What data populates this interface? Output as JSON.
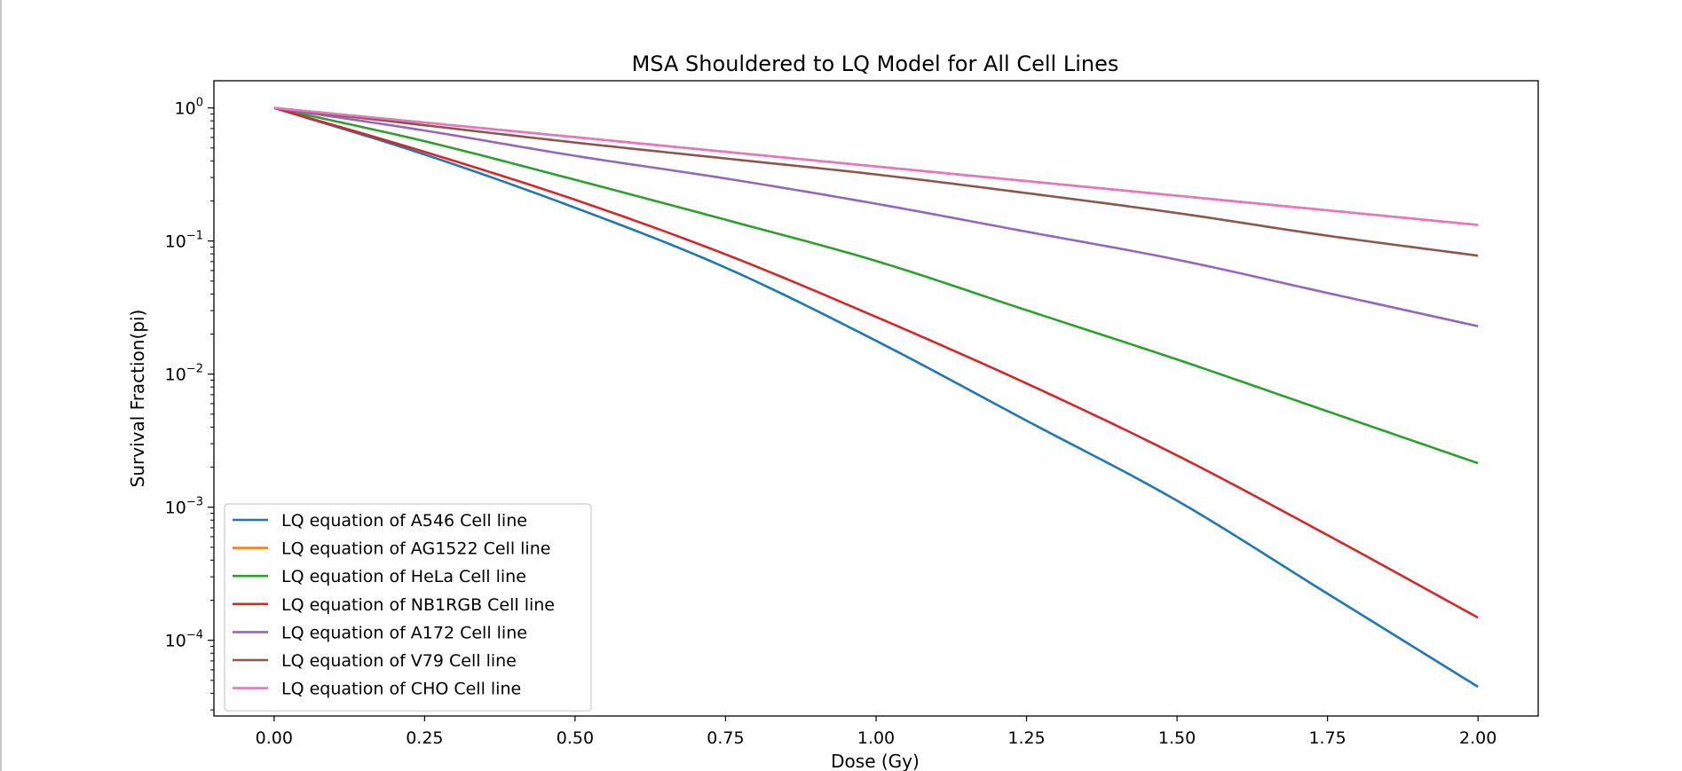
{
  "chart_data": {
    "type": "line",
    "title": "MSA Shouldered to LQ Model for All Cell Lines",
    "xlabel": "Dose (Gy)",
    "ylabel": "Survival Fraction(pi)",
    "xlim": [
      -0.1,
      2.1
    ],
    "ylim": [
      2.7e-05,
      1.6
    ],
    "yscale": "log",
    "grid": false,
    "legend_position": "lower-left",
    "x_ticks": [
      "0.00",
      "0.25",
      "0.50",
      "0.75",
      "1.00",
      "1.25",
      "1.50",
      "1.75",
      "2.00"
    ],
    "x_tick_values": [
      0,
      0.25,
      0.5,
      0.75,
      1.0,
      1.25,
      1.5,
      1.75,
      2.0
    ],
    "y_ticks": [
      {
        "value": 1,
        "base": "10",
        "exp": "0"
      },
      {
        "value": 0.1,
        "base": "10",
        "exp": "−1"
      },
      {
        "value": 0.01,
        "base": "10",
        "exp": "−2"
      },
      {
        "value": 0.001,
        "base": "10",
        "exp": "−3"
      },
      {
        "value": 0.0001,
        "base": "10",
        "exp": "−4"
      }
    ],
    "x": [
      0,
      0.25,
      0.5,
      0.75,
      1.0,
      1.25,
      1.5,
      1.75,
      2.0
    ],
    "series": [
      {
        "name": "LQ equation of A546 Cell line",
        "color": "#1f77b4",
        "values": [
          1.0,
          0.4467,
          0.1778,
          0.0631,
          0.0178,
          0.00447,
          0.00112,
          0.000224,
          4.47e-05
        ]
      },
      {
        "name": "LQ equation of AG1522 Cell line",
        "color": "#ff7f0e",
        "values": [
          1.0,
          0.776,
          0.603,
          0.468,
          0.363,
          0.282,
          0.219,
          0.17,
          0.132
        ]
      },
      {
        "name": "LQ equation of HeLa Cell line",
        "color": "#2ca02c",
        "values": [
          1.0,
          0.562,
          0.2884,
          0.1445,
          0.0708,
          0.0302,
          0.01288,
          0.00525,
          0.00214
        ]
      },
      {
        "name": "LQ equation of NB1RGB Cell line",
        "color": "#d62728",
        "values": [
          1.0,
          0.4677,
          0.2041,
          0.0794,
          0.0269,
          0.00851,
          0.00245,
          0.000617,
          0.000148
        ]
      },
      {
        "name": "LQ equation of A172 Cell line",
        "color": "#9467bd",
        "values": [
          1.0,
          0.676,
          0.4365,
          0.295,
          0.1905,
          0.1175,
          0.0724,
          0.0407,
          0.0229
        ]
      },
      {
        "name": "LQ equation of V79 Cell line",
        "color": "#8c564b",
        "values": [
          1.0,
          0.741,
          0.5495,
          0.417,
          0.3162,
          0.2291,
          0.1622,
          0.1096,
          0.0776
        ]
      },
      {
        "name": "LQ equation of CHO Cell line",
        "color": "#e377c2",
        "values": [
          1.0,
          0.776,
          0.603,
          0.468,
          0.363,
          0.282,
          0.219,
          0.17,
          0.132
        ]
      }
    ]
  }
}
